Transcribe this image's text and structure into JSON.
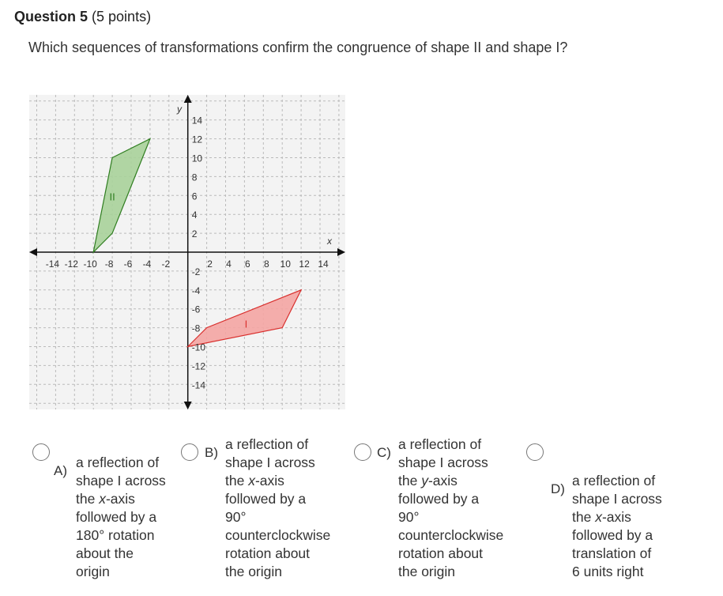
{
  "question": {
    "number_label": "Question 5",
    "points_label": "(5 points)",
    "text": "Which sequences of transformations confirm the congruence of shape II and shape I?"
  },
  "chart_data": {
    "type": "scatter",
    "xlabel": "x",
    "ylabel": "y",
    "xlim": [
      -16,
      16
    ],
    "ylim": [
      -16,
      16
    ],
    "grid": true,
    "x_ticks": [
      "-14",
      "-12",
      "-10",
      "-8",
      "-6",
      "-4",
      "-2",
      "2",
      "4",
      "6",
      "8",
      "10",
      "12",
      "14"
    ],
    "y_ticks": [
      "14",
      "12",
      "10",
      "8",
      "6",
      "4",
      "2",
      "-2",
      "-4",
      "-6",
      "-8",
      "-10",
      "-12",
      "-14"
    ],
    "shapes": [
      {
        "name": "II",
        "color": "#2e7d1f",
        "fill": "#a8d29a",
        "points": [
          [
            -10,
            0
          ],
          [
            -8,
            10
          ],
          [
            -4,
            12
          ],
          [
            -8,
            2
          ]
        ]
      },
      {
        "name": "I",
        "color": "#d9302e",
        "fill": "#f4a5a3",
        "points": [
          [
            0,
            -10
          ],
          [
            2,
            -8
          ],
          [
            12,
            -4
          ],
          [
            10,
            -8
          ]
        ]
      }
    ]
  },
  "options": [
    {
      "letter": "A)",
      "lines": [
        "a reflection of",
        "shape I across",
        "the |x|-axis",
        "followed by a",
        "180° rotation",
        "about the",
        "origin"
      ]
    },
    {
      "letter": "B)",
      "lines": [
        "a reflection of",
        "shape I across",
        "the |x|-axis",
        "followed by a",
        "90°",
        "counterclockwise",
        "rotation about",
        "the origin"
      ]
    },
    {
      "letter": "C)",
      "lines": [
        "a reflection of",
        "shape I across",
        "the |y|-axis",
        "followed by a",
        "90°",
        "counterclockwise",
        "rotation about",
        "the origin"
      ]
    },
    {
      "letter": "D)",
      "lines": [
        "a reflection of",
        "shape I across",
        "the |x|-axis",
        "followed by a",
        "translation of",
        "6 units right"
      ]
    }
  ]
}
